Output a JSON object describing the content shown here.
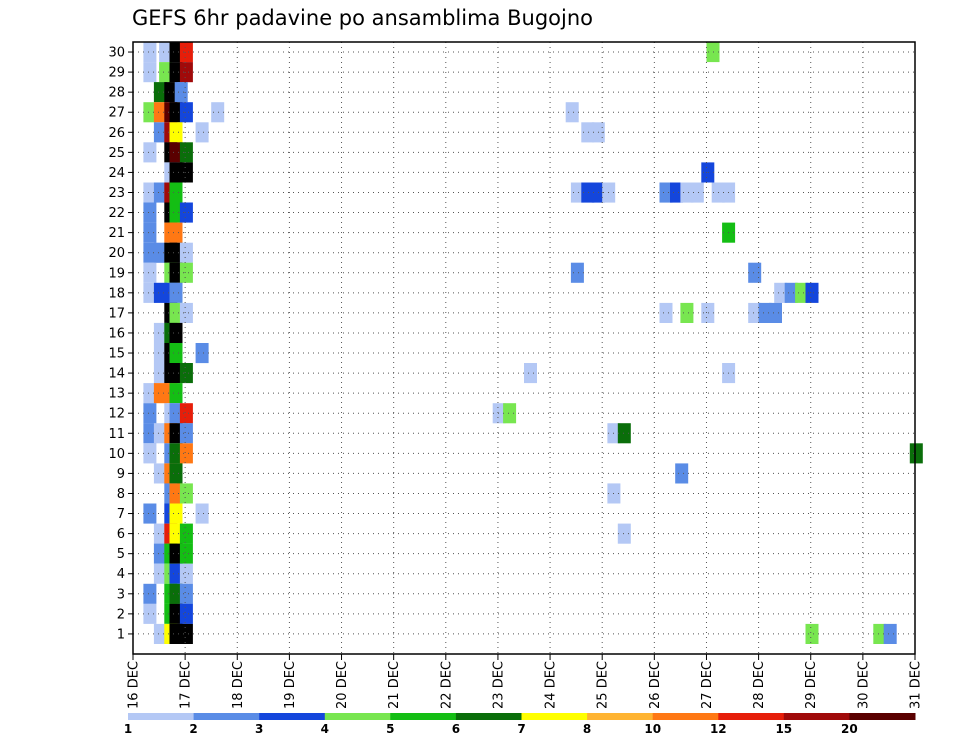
{
  "chart_data": {
    "type": "heatmap",
    "title": "GEFS 6hr padavine po ansamblima Bugojno",
    "xlabel": "",
    "ylabel": "",
    "x_ticks": [
      "16 DEC",
      "17 DEC",
      "18 DEC",
      "19 DEC",
      "20 DEC",
      "21 DEC",
      "22 DEC",
      "23 DEC",
      "24 DEC",
      "25 DEC",
      "26 DEC",
      "27 DEC",
      "28 DEC",
      "29 DEC",
      "30 DEC",
      "31 DEC"
    ],
    "y_ticks": [
      "1",
      "2",
      "3",
      "4",
      "5",
      "6",
      "7",
      "8",
      "9",
      "10",
      "11",
      "12",
      "13",
      "14",
      "15",
      "16",
      "17",
      "18",
      "19",
      "20",
      "21",
      "22",
      "23",
      "24",
      "25",
      "26",
      "27",
      "28",
      "29",
      "30"
    ],
    "xlim_days": [
      0,
      15
    ],
    "ylim": [
      0,
      30
    ],
    "grid": true,
    "colorbar": {
      "labels": [
        "1",
        "2",
        "3",
        "4",
        "5",
        "6",
        "7",
        "8",
        "10",
        "12",
        "15",
        "20"
      ],
      "colors": [
        "#b4c8f5",
        "#5a8ce6",
        "#1446dc",
        "#78e650",
        "#14be14",
        "#0a6e0a",
        "#ffff00",
        "#ffb432",
        "#ff7814",
        "#e61e0a",
        "#a00a0a",
        "#5a0000"
      ]
    },
    "cells": [
      [
        0.2,
        30,
        1
      ],
      [
        0.5,
        30,
        1
      ],
      [
        0.7,
        30,
        15
      ],
      [
        0.9,
        30,
        10
      ],
      [
        11.0,
        30,
        4
      ],
      [
        0.2,
        29,
        1
      ],
      [
        0.5,
        29,
        4
      ],
      [
        0.7,
        29,
        14
      ],
      [
        0.9,
        29,
        11
      ],
      [
        0.4,
        28,
        6
      ],
      [
        0.6,
        28,
        13
      ],
      [
        0.8,
        28,
        2
      ],
      [
        0.2,
        27,
        4
      ],
      [
        0.4,
        27,
        9
      ],
      [
        0.6,
        27,
        12
      ],
      [
        0.7,
        27,
        14
      ],
      [
        0.9,
        27,
        3
      ],
      [
        1.5,
        27,
        1
      ],
      [
        8.3,
        27,
        1
      ],
      [
        0.4,
        26,
        2
      ],
      [
        0.6,
        26,
        11
      ],
      [
        0.7,
        26,
        7
      ],
      [
        1.2,
        26,
        1
      ],
      [
        8.6,
        26,
        1
      ],
      [
        8.8,
        26,
        1
      ],
      [
        0.2,
        25,
        1
      ],
      [
        0.6,
        25,
        14
      ],
      [
        0.7,
        25,
        12
      ],
      [
        0.9,
        25,
        6
      ],
      [
        0.6,
        24,
        1
      ],
      [
        0.7,
        24,
        14
      ],
      [
        0.9,
        24,
        14
      ],
      [
        10.9,
        24,
        3
      ],
      [
        0.2,
        23,
        1
      ],
      [
        0.4,
        23,
        2
      ],
      [
        0.6,
        23,
        11
      ],
      [
        0.7,
        23,
        5
      ],
      [
        10.1,
        23,
        2
      ],
      [
        10.3,
        23,
        3
      ],
      [
        10.5,
        23,
        1
      ],
      [
        10.7,
        23,
        1
      ],
      [
        11.1,
        23,
        1
      ],
      [
        11.3,
        23,
        1
      ],
      [
        8.4,
        23,
        1
      ],
      [
        8.6,
        23,
        3
      ],
      [
        8.8,
        23,
        3
      ],
      [
        9.0,
        23,
        1
      ],
      [
        0.2,
        22,
        2
      ],
      [
        0.6,
        22,
        15
      ],
      [
        0.7,
        22,
        5
      ],
      [
        0.9,
        22,
        3
      ],
      [
        0.2,
        21,
        2
      ],
      [
        0.6,
        21,
        9
      ],
      [
        0.7,
        21,
        9
      ],
      [
        11.3,
        21,
        5
      ],
      [
        0.2,
        20,
        2
      ],
      [
        0.4,
        20,
        2
      ],
      [
        0.6,
        20,
        13
      ],
      [
        0.7,
        20,
        16
      ],
      [
        0.9,
        20,
        1
      ],
      [
        0.2,
        19,
        1
      ],
      [
        0.6,
        19,
        4
      ],
      [
        0.7,
        19,
        16
      ],
      [
        0.9,
        19,
        4
      ],
      [
        11.8,
        19,
        2
      ],
      [
        8.4,
        19,
        2
      ],
      [
        0.2,
        18,
        1
      ],
      [
        0.4,
        18,
        3
      ],
      [
        0.6,
        18,
        3
      ],
      [
        0.7,
        18,
        2
      ],
      [
        12.3,
        18,
        1
      ],
      [
        12.5,
        18,
        2
      ],
      [
        12.7,
        18,
        4
      ],
      [
        12.9,
        18,
        3
      ],
      [
        0.6,
        17,
        15
      ],
      [
        0.7,
        17,
        4
      ],
      [
        0.9,
        17,
        1
      ],
      [
        10.1,
        17,
        1
      ],
      [
        10.5,
        17,
        4
      ],
      [
        10.9,
        17,
        1
      ],
      [
        11.8,
        17,
        1
      ],
      [
        12.0,
        17,
        2
      ],
      [
        12.2,
        17,
        2
      ],
      [
        0.4,
        16,
        1
      ],
      [
        0.6,
        16,
        6
      ],
      [
        0.7,
        16,
        13
      ],
      [
        0.4,
        15,
        1
      ],
      [
        0.6,
        15,
        13
      ],
      [
        0.7,
        15,
        5
      ],
      [
        1.2,
        15,
        2
      ],
      [
        0.4,
        14,
        1
      ],
      [
        0.6,
        14,
        13
      ],
      [
        0.7,
        14,
        16
      ],
      [
        0.9,
        14,
        6
      ],
      [
        7.5,
        14,
        1
      ],
      [
        11.3,
        14,
        1
      ],
      [
        0.2,
        13,
        1
      ],
      [
        0.4,
        13,
        9
      ],
      [
        0.6,
        13,
        9
      ],
      [
        0.7,
        13,
        5
      ],
      [
        0.2,
        12,
        2
      ],
      [
        0.6,
        12,
        1
      ],
      [
        0.7,
        12,
        2
      ],
      [
        0.9,
        12,
        10
      ],
      [
        6.9,
        12,
        1
      ],
      [
        7.1,
        12,
        4
      ],
      [
        0.2,
        11,
        2
      ],
      [
        0.4,
        11,
        1
      ],
      [
        0.6,
        11,
        9
      ],
      [
        0.7,
        11,
        13
      ],
      [
        0.9,
        11,
        2
      ],
      [
        9.1,
        11,
        1
      ],
      [
        9.3,
        11,
        6
      ],
      [
        0.2,
        10,
        1
      ],
      [
        0.6,
        10,
        2
      ],
      [
        0.7,
        10,
        6
      ],
      [
        0.9,
        10,
        9
      ],
      [
        14.9,
        10,
        6
      ],
      [
        0.4,
        9,
        1
      ],
      [
        0.6,
        9,
        9
      ],
      [
        0.7,
        9,
        6
      ],
      [
        10.4,
        9,
        2
      ],
      [
        0.6,
        8,
        2
      ],
      [
        0.7,
        8,
        9
      ],
      [
        0.9,
        8,
        4
      ],
      [
        9.1,
        8,
        1
      ],
      [
        0.2,
        7,
        2
      ],
      [
        0.6,
        7,
        3
      ],
      [
        0.7,
        7,
        7
      ],
      [
        1.2,
        7,
        1
      ],
      [
        0.4,
        6,
        1
      ],
      [
        0.6,
        6,
        10
      ],
      [
        0.7,
        6,
        7
      ],
      [
        0.9,
        6,
        5
      ],
      [
        9.3,
        6,
        1
      ],
      [
        0.4,
        5,
        2
      ],
      [
        0.6,
        5,
        5
      ],
      [
        0.7,
        5,
        15
      ],
      [
        0.9,
        5,
        5
      ],
      [
        0.4,
        4,
        1
      ],
      [
        0.6,
        4,
        4
      ],
      [
        0.7,
        4,
        3
      ],
      [
        0.9,
        4,
        1
      ],
      [
        0.2,
        3,
        2
      ],
      [
        0.6,
        3,
        5
      ],
      [
        0.7,
        3,
        6
      ],
      [
        0.9,
        3,
        2
      ],
      [
        0.2,
        2,
        1
      ],
      [
        0.6,
        2,
        5
      ],
      [
        0.7,
        2,
        13
      ],
      [
        0.9,
        2,
        3
      ],
      [
        0.4,
        1,
        1
      ],
      [
        0.6,
        1,
        7
      ],
      [
        0.7,
        1,
        14
      ],
      [
        0.9,
        1,
        14
      ],
      [
        12.9,
        1,
        4
      ],
      [
        14.2,
        1,
        4
      ],
      [
        14.4,
        1,
        2
      ]
    ]
  }
}
